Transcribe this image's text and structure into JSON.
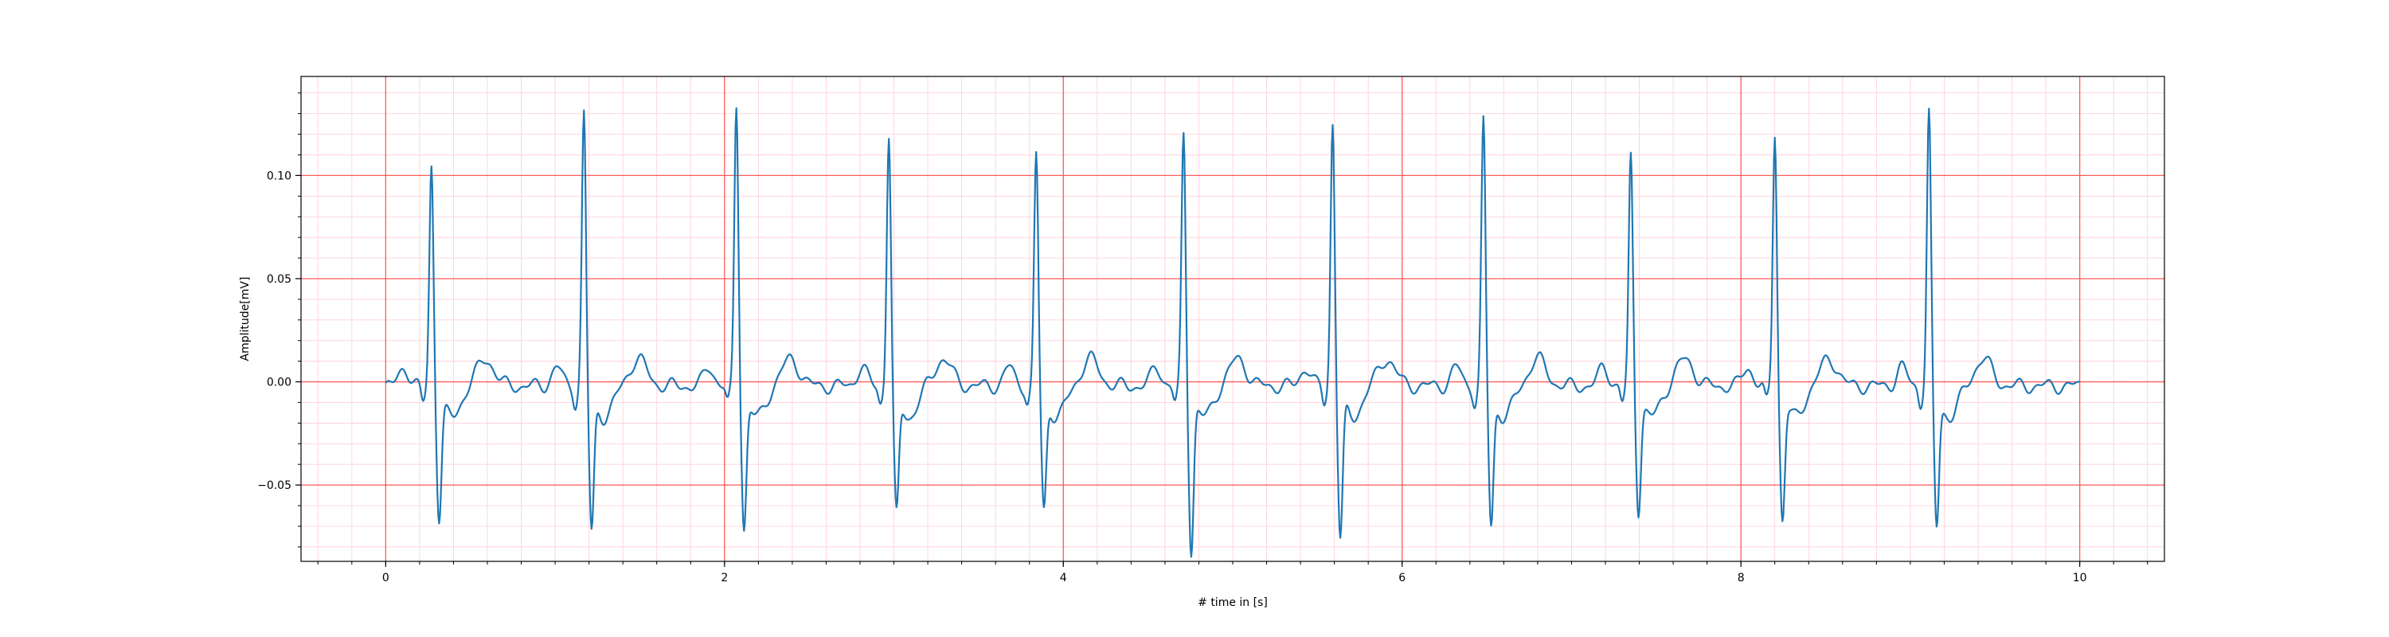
{
  "chart_data": {
    "type": "line",
    "title": "",
    "xlabel": "# time in [s]",
    "ylabel": "Amplitude[mV]",
    "xlim": [
      -0.5,
      10.5
    ],
    "ylim": [
      -0.087,
      0.148
    ],
    "x_ticks": [
      0,
      2,
      4,
      6,
      8,
      10
    ],
    "x_tick_labels": [
      "0",
      "2",
      "4",
      "6",
      "8",
      "10"
    ],
    "y_ticks": [
      -0.05,
      0.0,
      0.05,
      0.1
    ],
    "y_tick_labels": [
      "−0.05",
      "0.00",
      "0.05",
      "0.10"
    ],
    "grid": {
      "major": true,
      "minor": true,
      "major_x_step": 2,
      "major_y_step": 0.05,
      "minor_x_step": 0.2,
      "minor_y_step": 0.01
    },
    "colors": {
      "line": "#1f77b4",
      "major_grid": "#ff5a5a",
      "minor_grid": "#ffd0d8"
    },
    "sampling_interval_s": 0.01,
    "beats": [
      {
        "r_time": 0.27,
        "r_peak": 0.108,
        "s_trough": -0.059
      },
      {
        "r_time": 1.17,
        "r_peak": 0.133,
        "s_trough": -0.066
      },
      {
        "r_time": 2.07,
        "r_peak": 0.137,
        "s_trough": -0.064
      },
      {
        "r_time": 2.97,
        "r_peak": 0.123,
        "s_trough": -0.058
      },
      {
        "r_time": 3.84,
        "r_peak": 0.113,
        "s_trough": -0.055
      },
      {
        "r_time": 4.71,
        "r_peak": 0.123,
        "s_trough": -0.075
      },
      {
        "r_time": 5.59,
        "r_peak": 0.129,
        "s_trough": -0.069
      },
      {
        "r_time": 6.48,
        "r_peak": 0.129,
        "s_trough": -0.063
      },
      {
        "r_time": 7.35,
        "r_peak": 0.112,
        "s_trough": -0.055
      },
      {
        "r_time": 8.2,
        "r_peak": 0.124,
        "s_trough": -0.06
      },
      {
        "r_time": 9.11,
        "r_peak": 0.133,
        "s_trough": -0.064
      }
    ],
    "series": [
      {
        "start": {
          "x": 0.0,
          "y": -0.004
        },
        "end": {
          "x": 10.0,
          "y": -0.008
        }
      }
    ]
  }
}
